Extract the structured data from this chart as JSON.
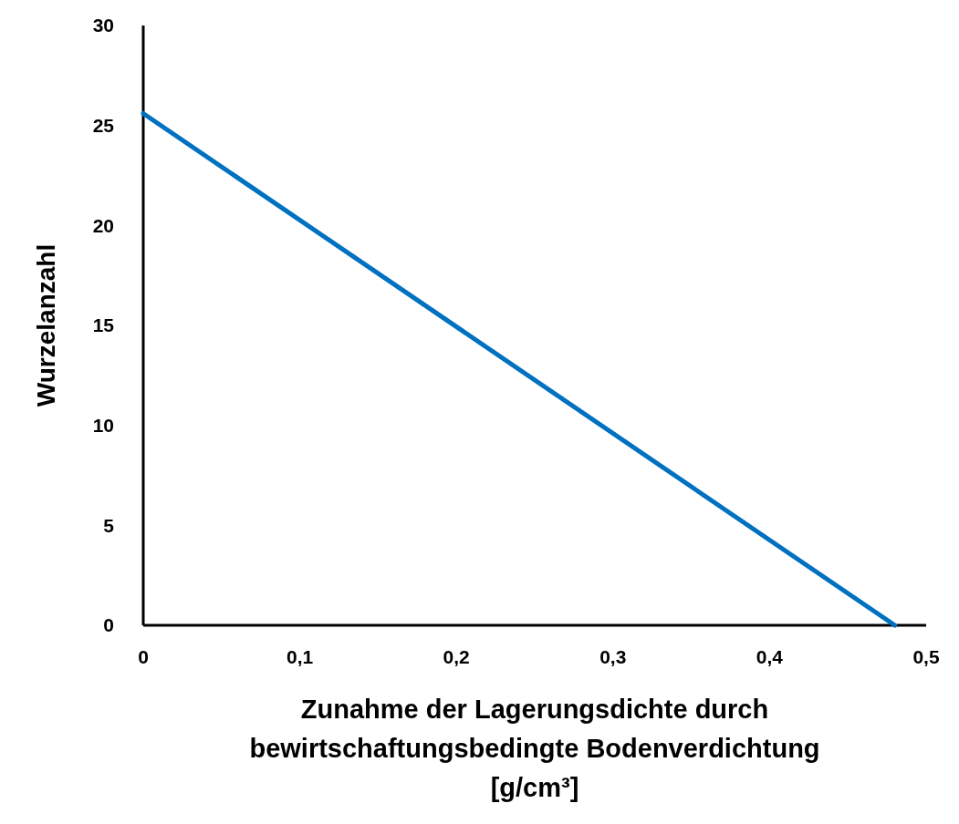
{
  "chart_data": {
    "type": "line",
    "xlabel": "Zunahme der Lagerungsdichte durch\nbewirtschaftungsbedingte Bodenverdichtung\n[g/cm³]",
    "ylabel": "Wurzelanzahl",
    "x": [
      0,
      0.48
    ],
    "series": [
      {
        "color": "#0070c0",
        "values": [
          25.6,
          0
        ]
      }
    ],
    "xlim": [
      0,
      0.5
    ],
    "xticks": [
      0,
      {
        "value": 0.1,
        "label": "0,1"
      },
      {
        "value": 0.2,
        "label": "0,2"
      },
      {
        "value": 0.3,
        "label": "0,3"
      },
      {
        "value": 0.4,
        "label": "0,4"
      },
      {
        "value": 0.5,
        "label": "0,5"
      }
    ],
    "ylim": [
      0,
      30
    ],
    "yticks": [
      0,
      5,
      10,
      15,
      20,
      25,
      30
    ],
    "grid": false,
    "marker": "none",
    "line_style": "solid"
  }
}
